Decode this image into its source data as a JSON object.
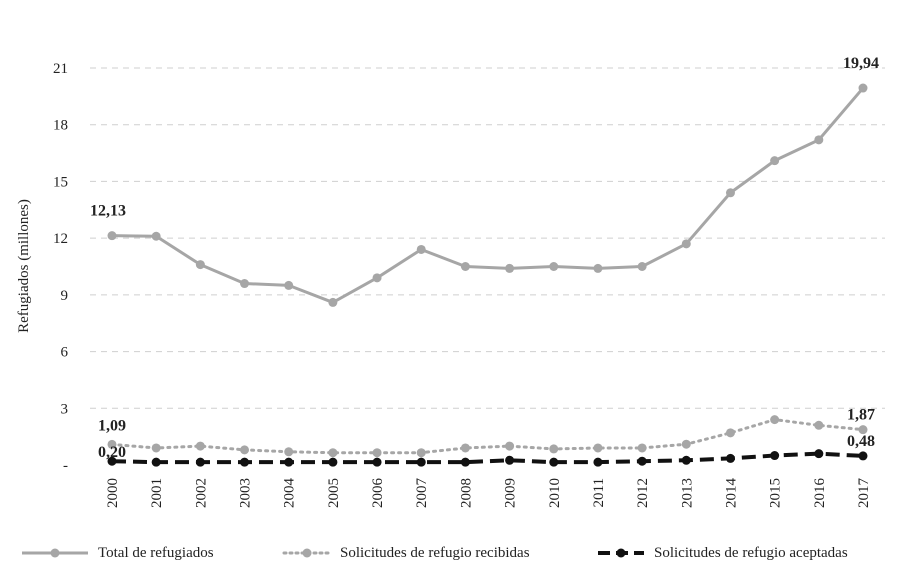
{
  "chart_data": {
    "type": "line",
    "title": "",
    "ylabel": "Refugiados (millones)",
    "xlabel": "",
    "ylim": [
      0,
      21
    ],
    "yticks": [
      "-",
      "3",
      "6",
      "9",
      "12",
      "15",
      "18",
      "21"
    ],
    "grid": true,
    "legend_position": "bottom",
    "categories": [
      "2000",
      "2001",
      "2002",
      "2003",
      "2004",
      "2005",
      "2006",
      "2007",
      "2008",
      "2009",
      "2010",
      "2011",
      "2012",
      "2013",
      "2014",
      "2015",
      "2016",
      "2017"
    ],
    "series": [
      {
        "name": "Total de refugiados",
        "style": "solid",
        "color": "#a6a6a6",
        "values": [
          12.13,
          12.1,
          10.6,
          9.6,
          9.5,
          8.6,
          9.9,
          11.4,
          10.5,
          10.4,
          10.5,
          10.4,
          10.5,
          11.7,
          14.4,
          16.1,
          17.2,
          19.94
        ]
      },
      {
        "name": "Solicitudes de refugio recibidas",
        "style": "dotted",
        "color": "#a6a6a6",
        "values": [
          1.09,
          0.9,
          1.0,
          0.8,
          0.7,
          0.65,
          0.65,
          0.65,
          0.9,
          1.0,
          0.85,
          0.9,
          0.9,
          1.1,
          1.7,
          2.4,
          2.1,
          1.87
        ]
      },
      {
        "name": "Solicitudes de refugio aceptadas",
        "style": "dashed",
        "color": "#111111",
        "values": [
          0.2,
          0.15,
          0.15,
          0.15,
          0.15,
          0.15,
          0.15,
          0.15,
          0.15,
          0.25,
          0.15,
          0.15,
          0.2,
          0.25,
          0.35,
          0.5,
          0.6,
          0.48
        ]
      }
    ],
    "annotations": [
      {
        "text": "12,13",
        "series": 0,
        "index": 0,
        "pos": "above"
      },
      {
        "text": "19,94",
        "series": 0,
        "index": 17,
        "pos": "above"
      },
      {
        "text": "1,09",
        "series": 1,
        "index": 0,
        "pos": "above"
      },
      {
        "text": "0,20",
        "series": 2,
        "index": 0,
        "pos": "above"
      },
      {
        "text": "1,87",
        "series": 1,
        "index": 17,
        "pos": "above"
      },
      {
        "text": "0,48",
        "series": 2,
        "index": 17,
        "pos": "above"
      }
    ]
  }
}
